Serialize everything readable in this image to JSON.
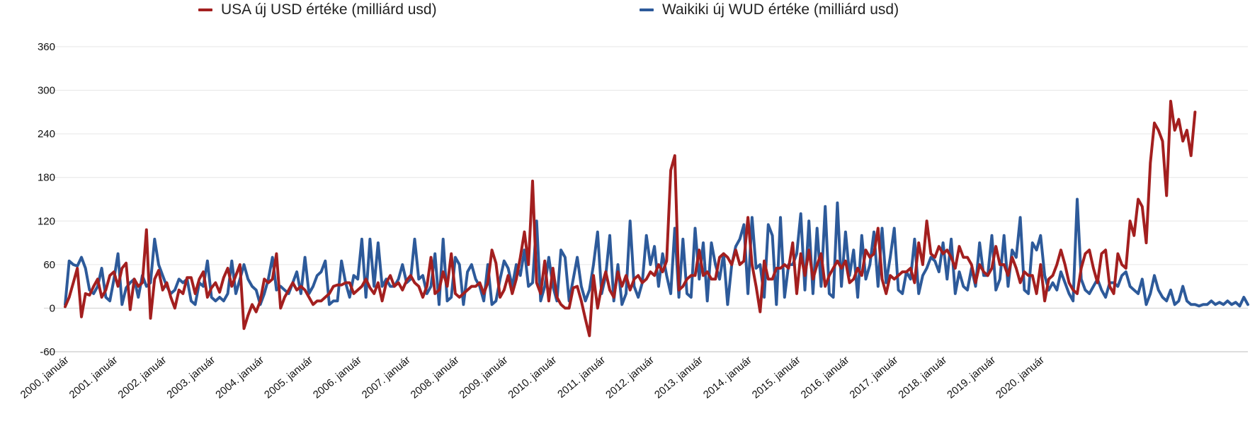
{
  "chart_data": {
    "type": "line",
    "title": "",
    "xlabel": "",
    "ylabel": "",
    "ylim": [
      -60,
      360
    ],
    "yticks": [
      -60,
      0,
      60,
      120,
      180,
      240,
      300,
      360
    ],
    "grid": true,
    "legend_position": "top",
    "x_start": "2000. január",
    "x_frequency": "monthly",
    "x_tick_labels": [
      "2000. január",
      "2001. január",
      "2002. január",
      "2003. január",
      "2004. január",
      "2005. január",
      "2006. január",
      "2007. január",
      "2008. január",
      "2009. január",
      "2010. január",
      "2011. január",
      "2012. január",
      "2013. január",
      "2014. január",
      "2015. január",
      "2016. január",
      "2017. január",
      "2018. január",
      "2019. január",
      "2020. január"
    ],
    "series": [
      {
        "name": "USA új USD értéke (milliárd usd)",
        "color": "#a31f1f",
        "values": [
          2,
          15,
          35,
          55,
          -12,
          20,
          18,
          30,
          40,
          15,
          25,
          45,
          50,
          30,
          55,
          62,
          -2,
          40,
          30,
          35,
          108,
          -14,
          40,
          52,
          25,
          35,
          15,
          0,
          25,
          20,
          42,
          42,
          20,
          40,
          50,
          15,
          28,
          35,
          22,
          42,
          55,
          30,
          45,
          60,
          -28,
          -10,
          5,
          -5,
          10,
          40,
          35,
          40,
          75,
          0,
          15,
          25,
          35,
          25,
          30,
          25,
          15,
          5,
          10,
          10,
          15,
          20,
          30,
          32,
          32,
          35,
          35,
          20,
          25,
          30,
          40,
          28,
          20,
          35,
          10,
          35,
          45,
          30,
          35,
          25,
          38,
          45,
          35,
          30,
          15,
          30,
          70,
          20,
          25,
          50,
          30,
          75,
          20,
          15,
          20,
          25,
          30,
          30,
          35,
          20,
          35,
          80,
          62,
          15,
          25,
          45,
          20,
          40,
          70,
          105,
          60,
          175,
          35,
          20,
          65,
          10,
          55,
          15,
          5,
          0,
          0,
          28,
          30,
          10,
          -15,
          -38,
          45,
          0,
          30,
          50,
          25,
          15,
          50,
          30,
          45,
          25,
          40,
          45,
          35,
          40,
          50,
          45,
          60,
          50,
          65,
          190,
          210,
          25,
          30,
          40,
          45,
          45,
          80,
          45,
          50,
          40,
          40,
          70,
          75,
          70,
          60,
          80,
          60,
          65,
          125,
          60,
          30,
          -5,
          65,
          40,
          40,
          55,
          55,
          60,
          55,
          90,
          20,
          75,
          45,
          80,
          40,
          60,
          75,
          30,
          45,
          55,
          65,
          55,
          65,
          35,
          40,
          55,
          45,
          80,
          70,
          75,
          110,
          40,
          20,
          45,
          40,
          45,
          50,
          50,
          55,
          35,
          90,
          60,
          120,
          75,
          70,
          85,
          75,
          80,
          70,
          55,
          85,
          70,
          70,
          60,
          35,
          60,
          50,
          45,
          55,
          85,
          60,
          60,
          45,
          70,
          55,
          35,
          50,
          45,
          45,
          20,
          60,
          10,
          40,
          45,
          60,
          80,
          60,
          35,
          25,
          20,
          55,
          75,
          80,
          55,
          35,
          75,
          80,
          30,
          20,
          75,
          60,
          55,
          120,
          100,
          150,
          140,
          90,
          200,
          255,
          245,
          230,
          155,
          285,
          245,
          260,
          230,
          245,
          210,
          270
        ]
      },
      {
        "name": "Waikiki új WUD értéke (milliárd usd)",
        "color": "#2d5a9a",
        "values": [
          5,
          65,
          60,
          58,
          70,
          55,
          25,
          20,
          30,
          55,
          15,
          10,
          40,
          75,
          5,
          28,
          35,
          40,
          15,
          45,
          30,
          35,
          95,
          60,
          45,
          30,
          20,
          25,
          40,
          35,
          40,
          10,
          5,
          35,
          30,
          65,
          15,
          10,
          15,
          10,
          20,
          65,
          20,
          40,
          60,
          40,
          30,
          25,
          5,
          20,
          40,
          70,
          25,
          30,
          25,
          20,
          35,
          50,
          20,
          70,
          20,
          30,
          45,
          50,
          65,
          5,
          10,
          10,
          65,
          35,
          15,
          45,
          40,
          95,
          15,
          95,
          30,
          90,
          30,
          40,
          30,
          30,
          40,
          60,
          35,
          40,
          95,
          40,
          45,
          20,
          30,
          75,
          5,
          95,
          10,
          15,
          70,
          60,
          5,
          50,
          60,
          40,
          30,
          10,
          60,
          5,
          10,
          40,
          65,
          55,
          30,
          60,
          45,
          80,
          30,
          35,
          120,
          10,
          30,
          70,
          30,
          10,
          80,
          70,
          10,
          40,
          70,
          30,
          10,
          25,
          60,
          105,
          20,
          45,
          100,
          10,
          60,
          5,
          20,
          120,
          30,
          15,
          35,
          100,
          60,
          85,
          30,
          75,
          45,
          20,
          110,
          15,
          95,
          20,
          15,
          110,
          40,
          90,
          10,
          90,
          60,
          40,
          75,
          5,
          60,
          85,
          95,
          115,
          20,
          125,
          55,
          60,
          15,
          115,
          100,
          5,
          125,
          15,
          60,
          60,
          75,
          130,
          25,
          120,
          20,
          110,
          30,
          140,
          20,
          15,
          145,
          30,
          105,
          45,
          80,
          15,
          100,
          40,
          60,
          105,
          30,
          110,
          35,
          70,
          110,
          25,
          20,
          50,
          40,
          95,
          20,
          45,
          55,
          70,
          65,
          50,
          90,
          40,
          95,
          20,
          50,
          30,
          25,
          55,
          30,
          90,
          45,
          45,
          100,
          25,
          40,
          100,
          30,
          80,
          70,
          125,
          25,
          20,
          90,
          80,
          100,
          45,
          25,
          35,
          25,
          50,
          35,
          20,
          10,
          150,
          40,
          25,
          20,
          30,
          40,
          25,
          15,
          35,
          35,
          30,
          45,
          50,
          30,
          25,
          20,
          40,
          5,
          20,
          45,
          25,
          15,
          10,
          25,
          5,
          10,
          30,
          10,
          5,
          5,
          3,
          5,
          5,
          10,
          5,
          8,
          5,
          10,
          5,
          8,
          3,
          15,
          5
        ]
      }
    ]
  }
}
